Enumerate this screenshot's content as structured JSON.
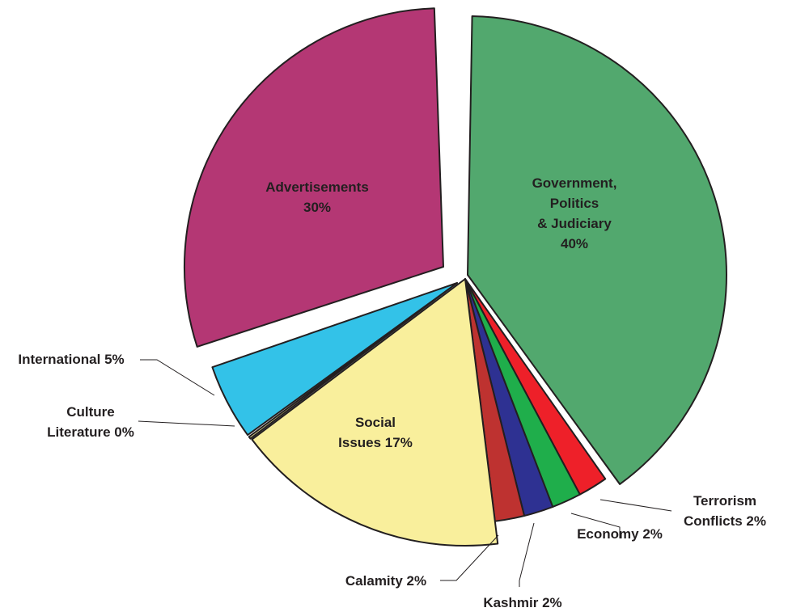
{
  "chart_data": {
    "type": "pie",
    "title": "",
    "slices": [
      {
        "name": "Government, Politics & Judiciary",
        "value": 40,
        "label_lines": [
          "Government,",
          "Politics",
          "& Judiciary",
          "40%"
        ],
        "color": "#52a86e"
      },
      {
        "name": "Terrorism Conflicts",
        "value": 2,
        "label_lines": [
          "Terrorism",
          "Conflicts 2%"
        ],
        "color": "#ee2029"
      },
      {
        "name": "Economy",
        "value": 2,
        "label_lines": [
          "Economy 2%"
        ],
        "color": "#1fae4b"
      },
      {
        "name": "Kashmir",
        "value": 2,
        "label_lines": [
          "Kashmir 2%"
        ],
        "color": "#2e3192"
      },
      {
        "name": "Calamity",
        "value": 2,
        "label_lines": [
          "Calamity 2%"
        ],
        "color": "#be3230"
      },
      {
        "name": "Social Issues",
        "value": 17,
        "label_lines": [
          "Social",
          "Issues 17%"
        ],
        "color": "#f9ef9c"
      },
      {
        "name": "Culture Literature",
        "value": 0,
        "label_lines": [
          "Culture",
          "Literature 0%"
        ],
        "color": "#f9ef9c"
      },
      {
        "name": "International",
        "value": 5,
        "label_lines": [
          "International 5%"
        ],
        "color": "#33c2e8"
      },
      {
        "name": "Advertisements",
        "value": 30,
        "label_lines": [
          "Advertisements",
          "30%"
        ],
        "color": "#b43774"
      }
    ]
  }
}
